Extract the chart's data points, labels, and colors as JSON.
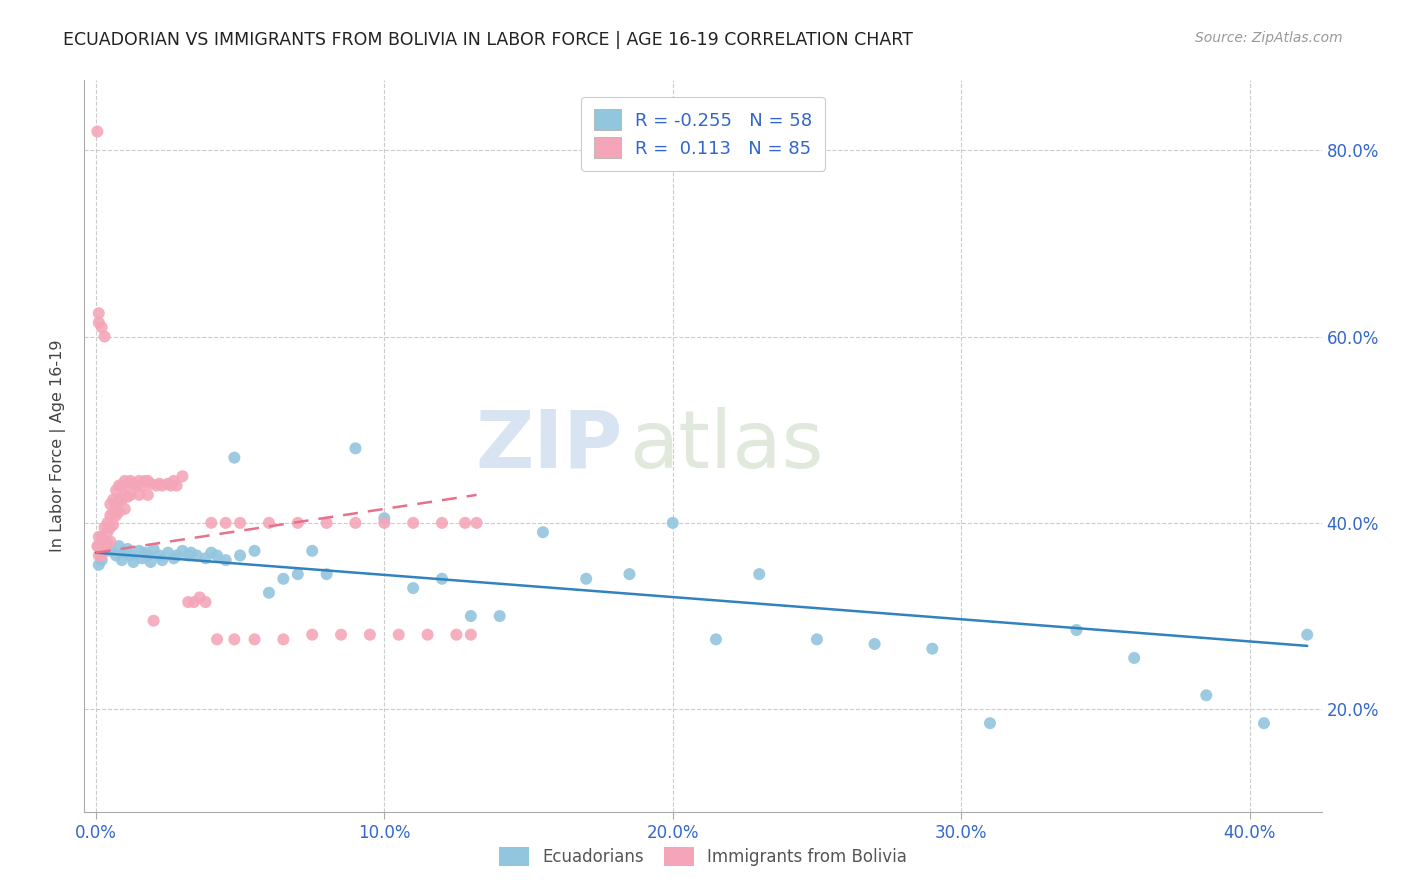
{
  "title": "ECUADORIAN VS IMMIGRANTS FROM BOLIVIA IN LABOR FORCE | AGE 16-19 CORRELATION CHART",
  "source": "Source: ZipAtlas.com",
  "legend_label_blue": "Ecuadorians",
  "legend_label_pink": "Immigrants from Bolivia",
  "R_blue": "-0.255",
  "N_blue": "58",
  "R_pink": "0.113",
  "N_pink": "85",
  "blue_color": "#92c5de",
  "pink_color": "#f4a6b8",
  "blue_line_color": "#3182bd",
  "pink_line_color": "#e8718a",
  "xlim": [
    -0.004,
    0.425
  ],
  "ylim": [
    0.09,
    0.875
  ],
  "xtick_vals": [
    0.0,
    0.1,
    0.2,
    0.3,
    0.4
  ],
  "ytick_vals": [
    0.2,
    0.4,
    0.6,
    0.8
  ],
  "blue_x": [
    0.001,
    0.002,
    0.005,
    0.007,
    0.008,
    0.009,
    0.01,
    0.011,
    0.012,
    0.013,
    0.015,
    0.016,
    0.017,
    0.018,
    0.019,
    0.02,
    0.022,
    0.023,
    0.025,
    0.027,
    0.028,
    0.03,
    0.032,
    0.033,
    0.035,
    0.038,
    0.04,
    0.042,
    0.045,
    0.048,
    0.05,
    0.055,
    0.06,
    0.065,
    0.07,
    0.075,
    0.08,
    0.09,
    0.1,
    0.11,
    0.12,
    0.13,
    0.14,
    0.155,
    0.17,
    0.185,
    0.2,
    0.215,
    0.23,
    0.25,
    0.27,
    0.29,
    0.31,
    0.34,
    0.36,
    0.385,
    0.405,
    0.42
  ],
  "blue_y": [
    0.355,
    0.36,
    0.37,
    0.365,
    0.375,
    0.36,
    0.368,
    0.372,
    0.365,
    0.358,
    0.37,
    0.362,
    0.368,
    0.365,
    0.358,
    0.372,
    0.365,
    0.36,
    0.368,
    0.362,
    0.365,
    0.37,
    0.365,
    0.368,
    0.365,
    0.362,
    0.368,
    0.365,
    0.36,
    0.47,
    0.365,
    0.37,
    0.325,
    0.34,
    0.345,
    0.37,
    0.345,
    0.48,
    0.405,
    0.33,
    0.34,
    0.3,
    0.3,
    0.39,
    0.34,
    0.345,
    0.4,
    0.275,
    0.345,
    0.275,
    0.27,
    0.265,
    0.185,
    0.285,
    0.255,
    0.215,
    0.185,
    0.28
  ],
  "pink_x": [
    0.0005,
    0.001,
    0.001,
    0.001,
    0.002,
    0.002,
    0.002,
    0.003,
    0.003,
    0.003,
    0.004,
    0.004,
    0.004,
    0.005,
    0.005,
    0.005,
    0.005,
    0.006,
    0.006,
    0.006,
    0.007,
    0.007,
    0.007,
    0.008,
    0.008,
    0.008,
    0.009,
    0.009,
    0.01,
    0.01,
    0.01,
    0.011,
    0.011,
    0.012,
    0.012,
    0.013,
    0.014,
    0.015,
    0.015,
    0.016,
    0.017,
    0.018,
    0.018,
    0.019,
    0.02,
    0.021,
    0.022,
    0.023,
    0.025,
    0.026,
    0.027,
    0.028,
    0.03,
    0.032,
    0.034,
    0.036,
    0.038,
    0.04,
    0.042,
    0.045,
    0.048,
    0.05,
    0.055,
    0.06,
    0.065,
    0.07,
    0.075,
    0.08,
    0.085,
    0.09,
    0.095,
    0.1,
    0.105,
    0.11,
    0.115,
    0.12,
    0.125,
    0.128,
    0.13,
    0.132,
    0.0005,
    0.001,
    0.001,
    0.002,
    0.003
  ],
  "pink_y": [
    0.375,
    0.385,
    0.375,
    0.365,
    0.385,
    0.375,
    0.365,
    0.395,
    0.38,
    0.37,
    0.4,
    0.39,
    0.378,
    0.42,
    0.408,
    0.395,
    0.38,
    0.425,
    0.412,
    0.398,
    0.435,
    0.42,
    0.408,
    0.44,
    0.425,
    0.412,
    0.44,
    0.425,
    0.445,
    0.43,
    0.415,
    0.442,
    0.428,
    0.445,
    0.43,
    0.442,
    0.44,
    0.445,
    0.43,
    0.44,
    0.445,
    0.445,
    0.43,
    0.442,
    0.295,
    0.44,
    0.442,
    0.44,
    0.442,
    0.44,
    0.445,
    0.44,
    0.45,
    0.315,
    0.315,
    0.32,
    0.315,
    0.4,
    0.275,
    0.4,
    0.275,
    0.4,
    0.275,
    0.4,
    0.275,
    0.4,
    0.28,
    0.4,
    0.28,
    0.4,
    0.28,
    0.4,
    0.28,
    0.4,
    0.28,
    0.4,
    0.28,
    0.4,
    0.28,
    0.4,
    0.82,
    0.625,
    0.615,
    0.61,
    0.6
  ],
  "blue_line_x": [
    0.0,
    0.42
  ],
  "blue_line_y": [
    0.368,
    0.268
  ],
  "pink_line_x": [
    0.0,
    0.132
  ],
  "pink_line_y": [
    0.368,
    0.43
  ]
}
